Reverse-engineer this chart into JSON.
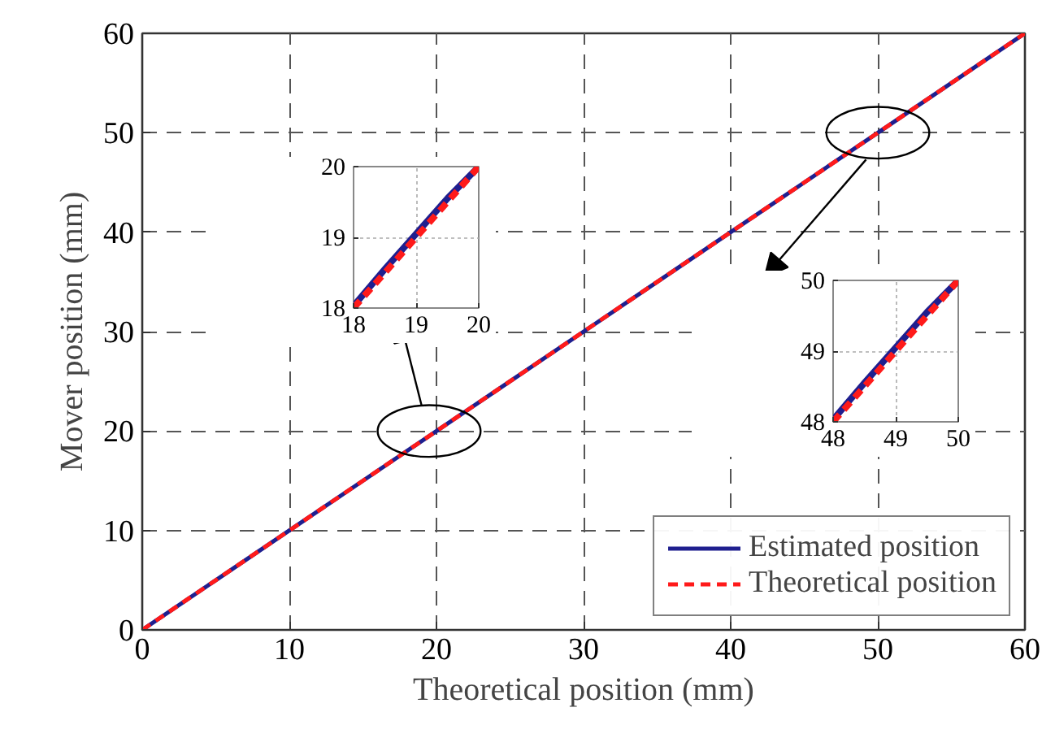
{
  "chart_data": [
    {
      "type": "line",
      "xlabel": "Theoretical position (mm)",
      "ylabel": "Mover position (mm)",
      "x": [
        0,
        5,
        10,
        15,
        20,
        25,
        30,
        35,
        40,
        45,
        50,
        55,
        60
      ],
      "series": [
        {
          "name": "Estimated position",
          "color": "#1f1f8f",
          "line_style": "solid",
          "values": [
            0,
            5,
            10,
            15,
            20,
            25,
            30,
            35,
            40,
            45,
            50,
            55,
            60
          ]
        },
        {
          "name": "Theoretical position",
          "color": "#ff1a1a",
          "line_style": "dashed",
          "values": [
            0,
            5,
            10,
            15,
            20,
            25,
            30,
            35,
            40,
            45,
            50,
            55,
            60
          ]
        }
      ],
      "xlim": [
        0,
        60
      ],
      "ylim": [
        0,
        60
      ],
      "xticks": [
        0,
        10,
        20,
        30,
        40,
        50,
        60
      ],
      "yticks": [
        0,
        10,
        20,
        30,
        40,
        50,
        60
      ],
      "grid": true,
      "legend": "bottom right"
    },
    {
      "type": "line",
      "x": [
        18,
        18.5,
        19,
        19.5,
        20
      ],
      "series": [
        {
          "color": "#1f1f8f",
          "line_style": "solid",
          "values": [
            18.03,
            18.55,
            19.05,
            19.55,
            20
          ]
        },
        {
          "color": "#ff1a1a",
          "line_style": "dashed",
          "values": [
            18,
            18.5,
            19,
            19.5,
            20
          ]
        }
      ],
      "xlim": [
        18,
        20
      ],
      "ylim": [
        18,
        20
      ],
      "xticks": [
        18,
        19,
        20
      ],
      "yticks": [
        18,
        19,
        20
      ],
      "grid": true
    },
    {
      "type": "line",
      "x": [
        48,
        48.5,
        49,
        49.5,
        50
      ],
      "series": [
        {
          "color": "#1f1f8f",
          "line_style": "solid",
          "values": [
            48.03,
            48.55,
            49.05,
            49.55,
            50
          ]
        },
        {
          "color": "#ff1a1a",
          "line_style": "dashed",
          "values": [
            48,
            48.5,
            49,
            49.5,
            50
          ]
        }
      ],
      "xlim": [
        48,
        50
      ],
      "ylim": [
        48,
        50
      ],
      "xticks": [
        48,
        49,
        50
      ],
      "yticks": [
        48,
        49,
        50
      ],
      "grid": true
    }
  ]
}
